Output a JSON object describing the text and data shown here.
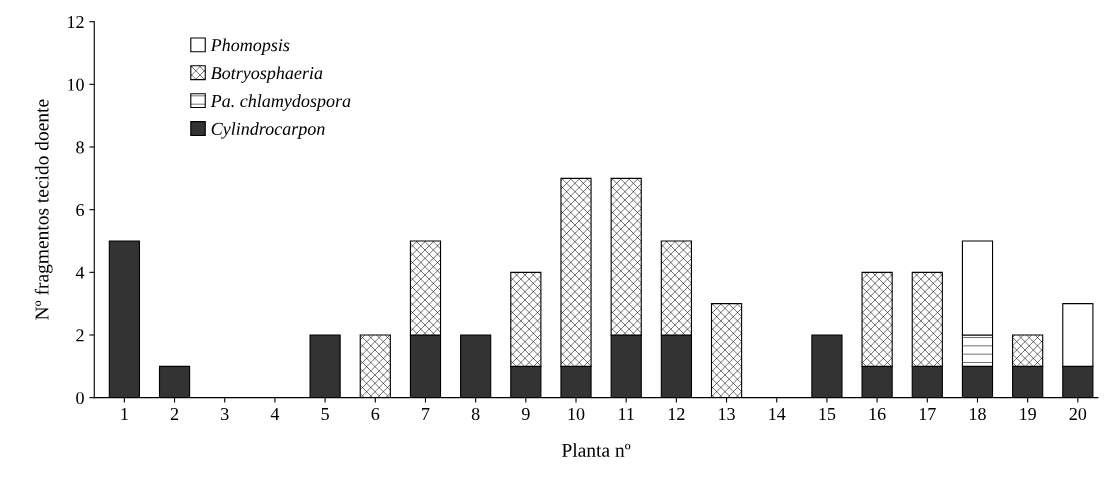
{
  "chart_data": {
    "type": "bar",
    "stacked": true,
    "xlabel": "Planta nº",
    "ylabel": "Nº fragmentos tecido doente",
    "categories": [
      "1",
      "2",
      "3",
      "4",
      "5",
      "6",
      "7",
      "8",
      "9",
      "10",
      "11",
      "12",
      "13",
      "14",
      "15",
      "16",
      "17",
      "18",
      "19",
      "20"
    ],
    "series": [
      {
        "name": "Cylindrocarpon",
        "color": "#333333",
        "values": [
          5,
          1,
          0,
          0,
          2,
          0,
          2,
          2,
          1,
          1,
          2,
          2,
          0,
          0,
          2,
          1,
          1,
          1,
          1,
          1
        ]
      },
      {
        "name": "Pa. chlamydospora",
        "color": "#000000",
        "values": [
          0,
          0,
          0,
          0,
          0,
          0,
          0,
          0,
          0,
          0,
          0,
          0,
          0,
          0,
          0,
          0,
          0,
          1,
          0,
          0
        ]
      },
      {
        "name": "Botryosphaeria",
        "color": "#000000",
        "values": [
          0,
          0,
          0,
          0,
          0,
          2,
          3,
          0,
          3,
          6,
          5,
          3,
          3,
          0,
          0,
          3,
          3,
          0,
          1,
          0
        ]
      },
      {
        "name": "Phomopsis",
        "color": "#ffffff",
        "values": [
          0,
          0,
          0,
          0,
          0,
          0,
          0,
          0,
          0,
          0,
          0,
          0,
          0,
          0,
          0,
          0,
          0,
          3,
          0,
          2
        ]
      }
    ],
    "ylim": [
      0,
      12
    ],
    "yticks": [
      0,
      2,
      4,
      6,
      8,
      10,
      12
    ],
    "grid": false,
    "legend": "top left"
  }
}
